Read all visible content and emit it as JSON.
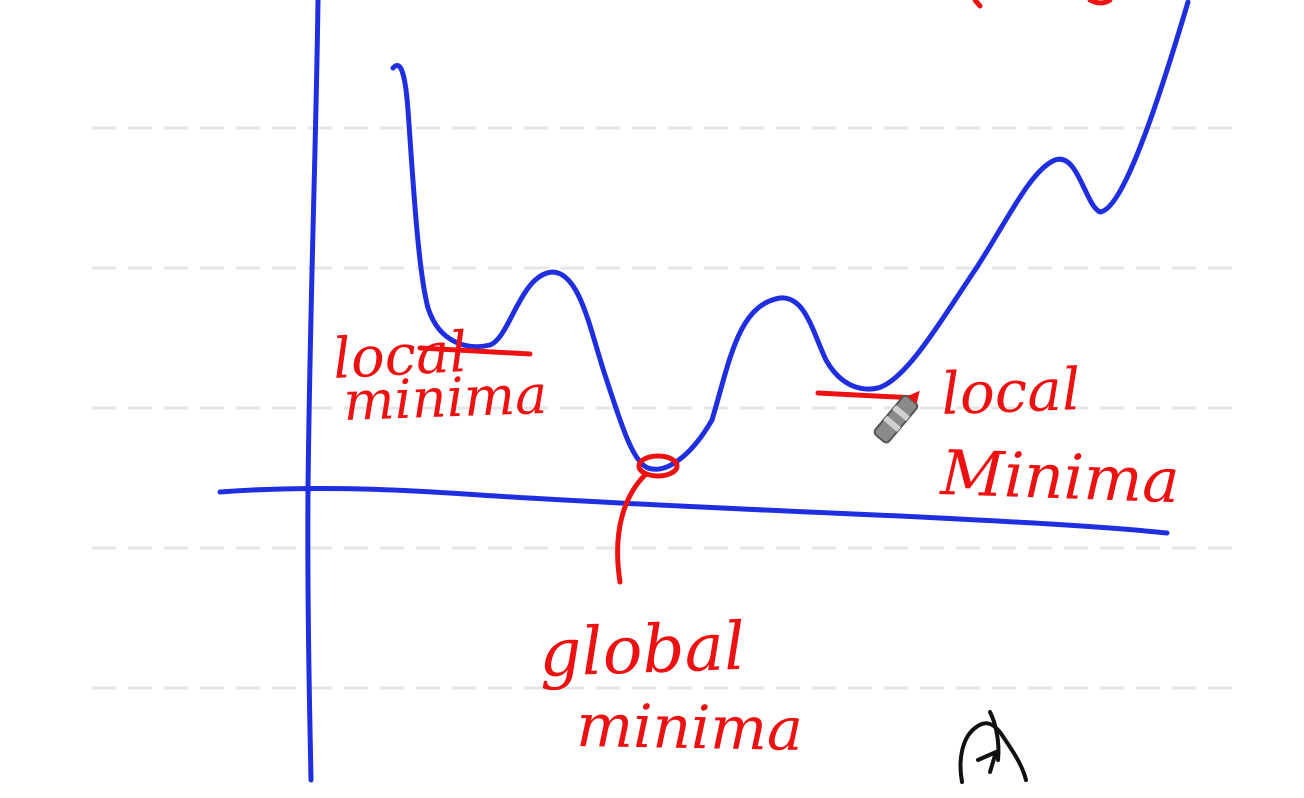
{
  "whiteboard": {
    "ink_colors": {
      "curve": "#1f2fe0",
      "axes": "#1f2fe0",
      "annotations": "#ee1111",
      "cursor": "#111111",
      "ruled_lines": "#e6e6e6"
    },
    "annotations": {
      "local_minima_left": [
        "local",
        "minima"
      ],
      "local_minima_right": [
        "local",
        "Minima"
      ],
      "global_minima": [
        "global",
        "minima"
      ]
    },
    "tools": {
      "pen_icon": "pen-icon",
      "pointer_icon": "hand-cursor-icon"
    }
  }
}
